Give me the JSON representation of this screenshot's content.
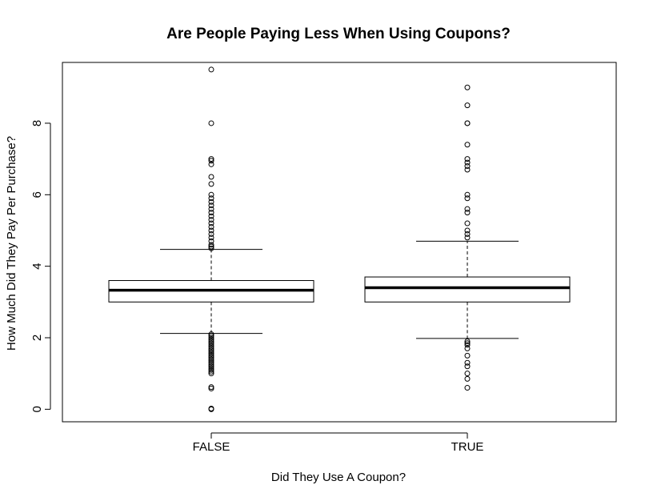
{
  "chart_data": {
    "type": "boxplot",
    "title": "Are People Paying Less When Using Coupons?",
    "xlabel": "Did They Use A Coupon?",
    "ylabel": "How Much Did They Pay Per Purchase?",
    "ylim": [
      -0.35,
      9.7
    ],
    "yticks": [
      "0",
      "2",
      "4",
      "6",
      "8"
    ],
    "grid": false,
    "legend": "none",
    "categories": [
      "FALSE",
      "TRUE"
    ],
    "boxes": [
      {
        "category": "FALSE",
        "whisker_low": 2.12,
        "q1": 3.0,
        "median": 3.33,
        "q3": 3.6,
        "whisker_high": 4.47,
        "outliers": [
          9.5,
          8.0,
          7.0,
          6.95,
          6.85,
          6.5,
          6.3,
          6.0,
          5.9,
          5.8,
          5.7,
          5.6,
          5.5,
          5.4,
          5.3,
          5.2,
          5.1,
          5.0,
          4.9,
          4.8,
          4.7,
          4.6,
          4.55,
          4.5,
          2.1,
          2.05,
          2.0,
          1.95,
          1.9,
          1.85,
          1.8,
          1.75,
          1.7,
          1.65,
          1.6,
          1.55,
          1.5,
          1.45,
          1.4,
          1.35,
          1.3,
          1.25,
          1.2,
          1.15,
          1.1,
          1.05,
          1.0,
          0.62,
          0.58,
          0.02,
          0.0
        ]
      },
      {
        "category": "TRUE",
        "whisker_low": 1.98,
        "q1": 3.0,
        "median": 3.4,
        "q3": 3.7,
        "whisker_high": 4.7,
        "outliers": [
          9.0,
          8.5,
          8.0,
          8.0,
          7.4,
          7.0,
          6.9,
          6.8,
          6.7,
          6.0,
          5.9,
          5.6,
          5.5,
          5.2,
          5.0,
          4.9,
          4.8,
          1.9,
          1.85,
          1.8,
          1.7,
          1.5,
          1.3,
          1.2,
          1.0,
          0.85,
          0.6
        ]
      }
    ]
  }
}
